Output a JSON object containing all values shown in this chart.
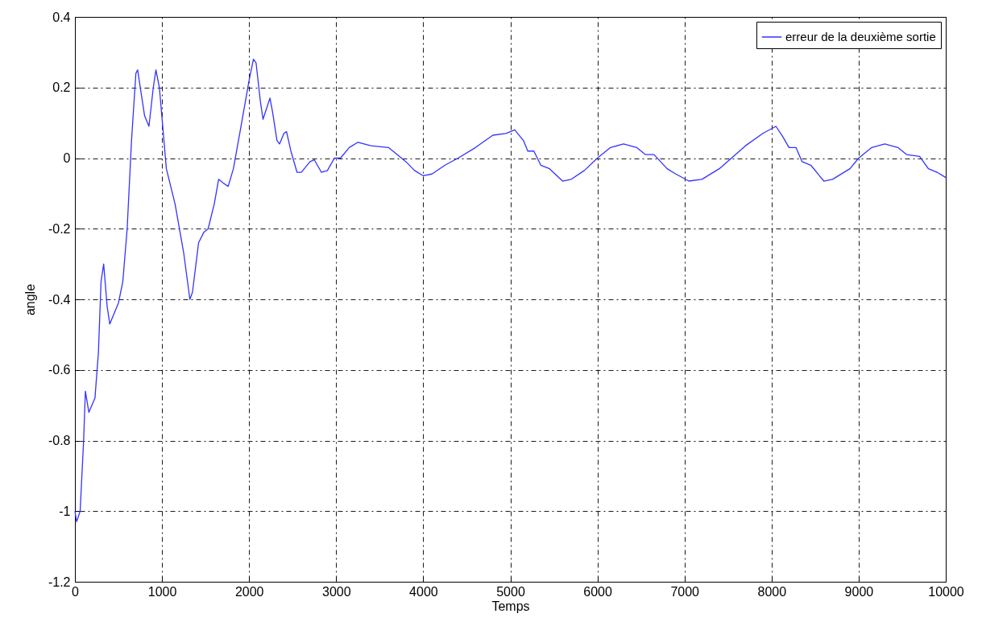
{
  "chart_data": {
    "type": "line",
    "xlabel": "Temps",
    "ylabel": "angle",
    "xlim": [
      0,
      10000
    ],
    "ylim": [
      -1.2,
      0.4
    ],
    "xticks": [
      0,
      1000,
      2000,
      3000,
      4000,
      5000,
      6000,
      7000,
      8000,
      9000,
      10000
    ],
    "yticks": [
      -1.2,
      -1,
      -0.8,
      -0.6,
      -0.4,
      -0.2,
      0,
      0.2,
      0.4
    ],
    "grid": true,
    "legend": "top right",
    "line_style": "solid",
    "marker": "none",
    "x": [
      0,
      20,
      60,
      100,
      120,
      160,
      230,
      270,
      300,
      330,
      370,
      400,
      500,
      550,
      600,
      650,
      700,
      720,
      800,
      850,
      900,
      930,
      970,
      1050,
      1150,
      1250,
      1320,
      1350,
      1420,
      1480,
      1530,
      1600,
      1650,
      1700,
      1760,
      1820,
      1900,
      2000,
      2050,
      2080,
      2130,
      2160,
      2200,
      2240,
      2270,
      2320,
      2350,
      2400,
      2430,
      2480,
      2550,
      2600,
      2700,
      2750,
      2830,
      2900,
      2980,
      3050,
      3150,
      3250,
      3400,
      3600,
      3700,
      3800,
      3900,
      4000,
      4100,
      4250,
      4400,
      4600,
      4800,
      4950,
      5050,
      5150,
      5200,
      5270,
      5350,
      5450,
      5600,
      5700,
      5850,
      6000,
      6150,
      6300,
      6450,
      6550,
      6650,
      6800,
      6900,
      7050,
      7200,
      7400,
      7700,
      7900,
      8050,
      8130,
      8200,
      8280,
      8350,
      8450,
      8600,
      8700,
      8900,
      9000,
      9150,
      9300,
      9450,
      9550,
      9700,
      9800,
      9900,
      10000
    ],
    "series": [
      {
        "name": "erreur de la deuxième sortie",
        "color": "#3333ff",
        "values": [
          -1.0,
          -1.03,
          -1.0,
          -0.8,
          -0.66,
          -0.72,
          -0.68,
          -0.55,
          -0.35,
          -0.3,
          -0.42,
          -0.47,
          -0.41,
          -0.35,
          -0.2,
          0.05,
          0.24,
          0.25,
          0.12,
          0.09,
          0.2,
          0.25,
          0.2,
          -0.03,
          -0.13,
          -0.27,
          -0.4,
          -0.38,
          -0.24,
          -0.21,
          -0.2,
          -0.13,
          -0.06,
          -0.07,
          -0.08,
          -0.03,
          0.08,
          0.22,
          0.28,
          0.27,
          0.16,
          0.11,
          0.14,
          0.17,
          0.13,
          0.05,
          0.04,
          0.07,
          0.075,
          0.02,
          -0.04,
          -0.04,
          -0.01,
          -0.005,
          -0.04,
          -0.035,
          0.0,
          0.0,
          0.03,
          0.045,
          0.035,
          0.03,
          0.01,
          -0.01,
          -0.035,
          -0.05,
          -0.045,
          -0.02,
          0.0,
          0.03,
          0.065,
          0.07,
          0.08,
          0.05,
          0.02,
          0.02,
          -0.02,
          -0.03,
          -0.065,
          -0.06,
          -0.035,
          0.0,
          0.03,
          0.04,
          0.03,
          0.01,
          0.01,
          -0.03,
          -0.045,
          -0.065,
          -0.06,
          -0.03,
          0.035,
          0.07,
          0.09,
          0.06,
          0.03,
          0.03,
          -0.01,
          -0.02,
          -0.065,
          -0.06,
          -0.03,
          0.0,
          0.03,
          0.04,
          0.03,
          0.01,
          0.005,
          -0.03,
          -0.04,
          -0.055
        ]
      }
    ]
  }
}
